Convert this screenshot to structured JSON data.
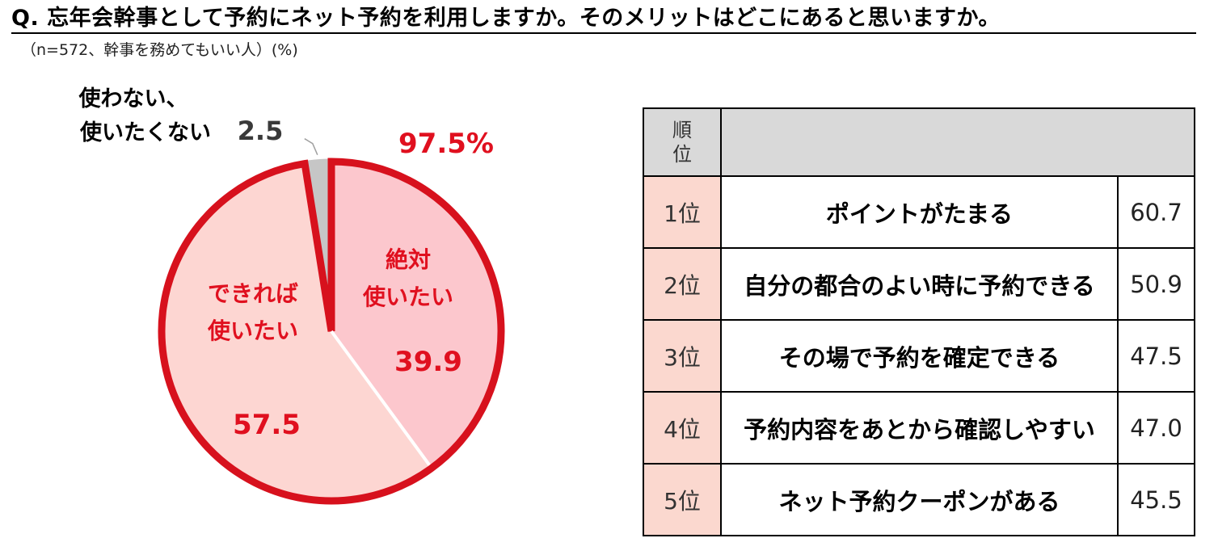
{
  "title": "Q. 忘年会幹事として予約にネット予約を利用しますか。そのメリットはどこにあると思いますか。",
  "subtitle": "（n=572、幹事を務めてもいい人）(%)",
  "chart_data": {
    "type": "pie",
    "start": "top",
    "direction": "clockwise",
    "total_label": "97.5%",
    "slices": [
      {
        "label_lines": [
          "絶対",
          "使いたい"
        ],
        "value": 39.9,
        "value_label": "39.9",
        "fill": "#fcc7cd"
      },
      {
        "label_lines": [
          "できれば",
          "使いたい"
        ],
        "value": 57.5,
        "value_label": "57.5",
        "fill": "#fdd6d2"
      },
      {
        "label_lines": [
          "使わない、",
          "使いたくない"
        ],
        "value": 2.5,
        "value_label": "2.5",
        "fill": "#c6c6c6"
      }
    ]
  },
  "colors": {
    "accent_red": "#e0101f",
    "outline_red": "#d7111d",
    "rank_fill": "#fbd8cf",
    "header_fill": "#d9d9d9",
    "dark_label": "#3a3a3a",
    "gray_line": "#a0a0a0"
  },
  "ranking": {
    "header_rank": [
      "順",
      "位"
    ],
    "rows": [
      {
        "rank": "1位",
        "reason": "ポイントがたまる",
        "value": "60.7"
      },
      {
        "rank": "2位",
        "reason": "自分の都合のよい時に予約できる",
        "value": "50.9"
      },
      {
        "rank": "3位",
        "reason": "その場で予約を確定できる",
        "value": "47.5"
      },
      {
        "rank": "4位",
        "reason": "予約内容をあとから確認しやすい",
        "value": "47.0"
      },
      {
        "rank": "5位",
        "reason": "ネット予約クーポンがある",
        "value": "45.5"
      }
    ]
  }
}
